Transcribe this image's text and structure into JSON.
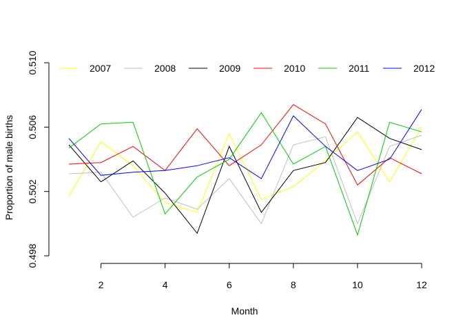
{
  "chart_data": {
    "type": "line",
    "title": "",
    "xlabel": "Month",
    "ylabel": "Proportion of male births",
    "xlim": [
      1,
      12
    ],
    "ylim": [
      0.498,
      0.51
    ],
    "x_ticks": [
      "2",
      "4",
      "6",
      "8",
      "10",
      "12"
    ],
    "y_ticks": [
      "0.498",
      "0.502",
      "0.506",
      "0.510"
    ],
    "legend_position": "top",
    "grid": false,
    "x": [
      1,
      2,
      3,
      4,
      5,
      6,
      7,
      8,
      9,
      10,
      11,
      12
    ],
    "series": [
      {
        "name": "2007",
        "color": "#ffff00",
        "values": [
          0.5017,
          0.5051,
          0.5036,
          0.5013,
          0.5007,
          0.5056,
          0.5015,
          0.5023,
          0.5039,
          0.5057,
          0.5026,
          0.506
        ]
      },
      {
        "name": "2008",
        "color": "#bebebe",
        "values": [
          0.5031,
          0.5032,
          0.5004,
          0.5016,
          0.5009,
          0.5028,
          0.5,
          0.5049,
          0.5054,
          0.5,
          0.5048,
          0.5055
        ]
      },
      {
        "name": "2009",
        "color": "#000000",
        "values": [
          0.5049,
          0.5026,
          0.5039,
          0.5019,
          0.4994,
          0.5048,
          0.5007,
          0.5033,
          0.5038,
          0.5066,
          0.5053,
          0.5046
        ]
      },
      {
        "name": "2010",
        "color": "#ff0000",
        "values": [
          0.5037,
          0.5038,
          0.5048,
          0.5033,
          0.5059,
          0.5036,
          0.5049,
          0.5074,
          0.5062,
          0.5024,
          0.5041,
          0.5031
        ]
      },
      {
        "name": "2011",
        "color": "#00cd00",
        "values": [
          0.5047,
          0.5062,
          0.5063,
          0.5006,
          0.5029,
          0.504,
          0.5069,
          0.5037,
          0.5048,
          0.4993,
          0.5063,
          0.5057
        ]
      },
      {
        "name": "2012",
        "color": "#0000ff",
        "values": [
          0.5053,
          0.503,
          0.5032,
          0.5033,
          0.5036,
          0.5041,
          0.5028,
          0.5067,
          0.5048,
          0.5033,
          0.504,
          0.5071
        ]
      }
    ]
  }
}
